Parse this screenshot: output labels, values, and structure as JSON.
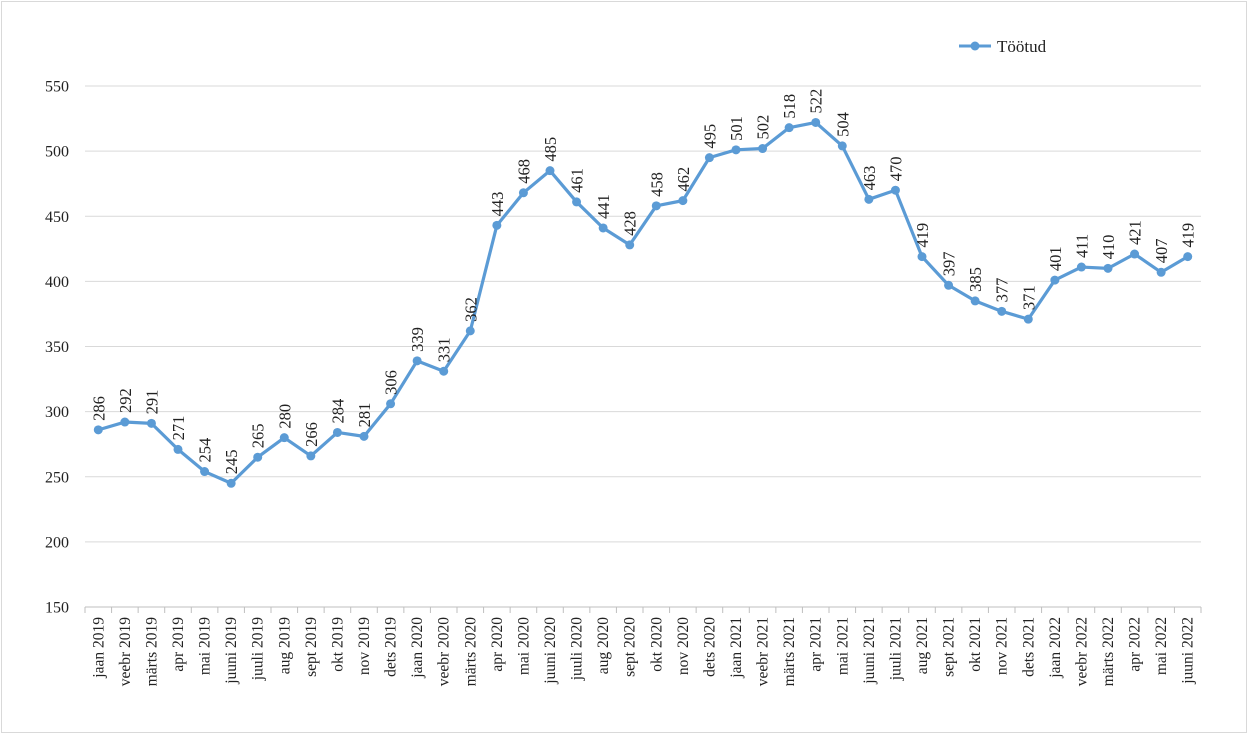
{
  "chart_data": {
    "type": "line",
    "categories": [
      "jaan 2019",
      "veebr 2019",
      "märts 2019",
      "apr 2019",
      "mai 2019",
      "juuni 2019",
      "juuli 2019",
      "aug 2019",
      "sept 2019",
      "okt 2019",
      "nov 2019",
      "dets 2019",
      "jaan 2020",
      "veebr 2020",
      "märts 2020",
      "apr 2020",
      "mai 2020",
      "juuni 2020",
      "juuli 2020",
      "aug 2020",
      "sept 2020",
      "okt 2020",
      "nov 2020",
      "dets 2020",
      "jaan 2021",
      "veebr 2021",
      "märts 2021",
      "apr 2021",
      "mai 2021",
      "juuni 2021",
      "juuli 2021",
      "aug 2021",
      "sept 2021",
      "okt 2021",
      "nov 2021",
      "dets 2021",
      "jaan 2022",
      "veebr 2022",
      "märts 2022",
      "apr 2022",
      "mai 2022",
      "juuni 2022"
    ],
    "series": [
      {
        "name": "Töötud",
        "color": "#5b9bd5",
        "values": [
          286,
          292,
          291,
          271,
          254,
          245,
          265,
          280,
          266,
          284,
          281,
          306,
          339,
          331,
          362,
          443,
          468,
          485,
          461,
          441,
          428,
          458,
          462,
          495,
          501,
          502,
          518,
          522,
          504,
          463,
          470,
          419,
          397,
          385,
          377,
          371,
          401,
          411,
          410,
          421,
          407,
          419
        ]
      }
    ],
    "yticks": [
      "150",
      "200",
      "250",
      "300",
      "350",
      "400",
      "450",
      "500",
      "550"
    ],
    "ylim": [
      150,
      550
    ],
    "grid": true,
    "legend_position": "top-right",
    "data_labels": true
  }
}
